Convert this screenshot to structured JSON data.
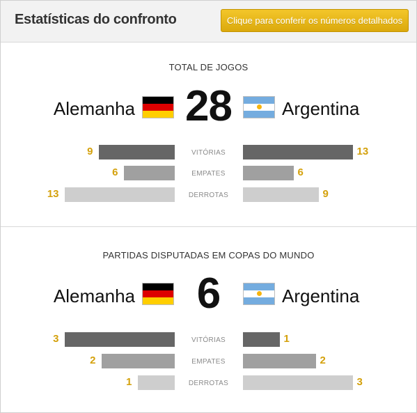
{
  "header": {
    "title": "Estatísticas do confronto",
    "details_button_label": "Clique para conferir os números detalhados"
  },
  "colors": {
    "accent_button": "#e3b11a",
    "value_text": "#d4a10c",
    "bar_wins": "#666666",
    "bar_draws": "#a0a0a0",
    "bar_losses": "#cecece"
  },
  "sections": [
    {
      "title": "TOTAL DE JOGOS",
      "team_left": "Alemanha",
      "team_right": "Argentina",
      "flag_left": "germany-flag-icon",
      "flag_right": "argentina-flag-icon",
      "total": "28",
      "rows": [
        {
          "label": "VITÓRIAS",
          "left": 9,
          "right": 13
        },
        {
          "label": "EMPATES",
          "left": 6,
          "right": 6
        },
        {
          "label": "DERROTAS",
          "left": 13,
          "right": 9
        }
      ]
    },
    {
      "title": "PARTIDAS DISPUTADAS EM COPAS DO MUNDO",
      "team_left": "Alemanha",
      "team_right": "Argentina",
      "flag_left": "germany-flag-icon",
      "flag_right": "argentina-flag-icon",
      "total": "6",
      "rows": [
        {
          "label": "VITÓRIAS",
          "left": 3,
          "right": 1
        },
        {
          "label": "EMPATES",
          "left": 2,
          "right": 2
        },
        {
          "label": "DERROTAS",
          "left": 1,
          "right": 3
        }
      ]
    }
  ]
}
